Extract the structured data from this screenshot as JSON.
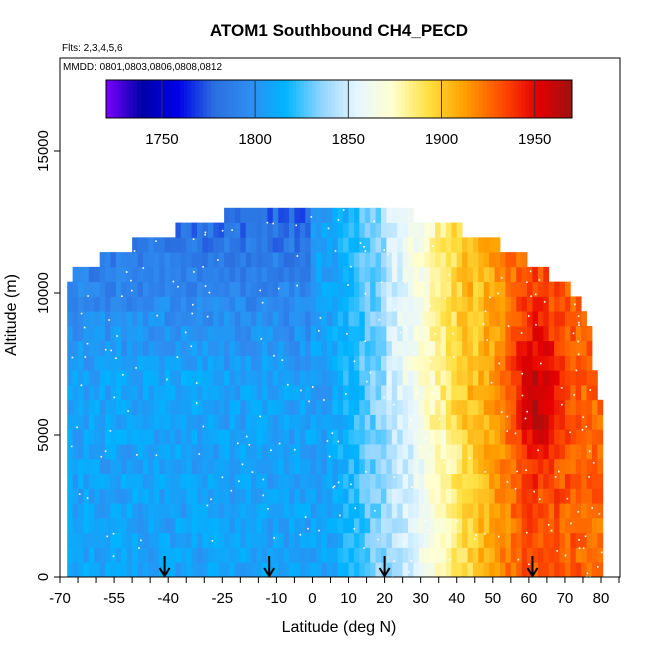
{
  "chart_data": {
    "type": "heatmap",
    "title": "ATOM1 Southbound CH4_PECD",
    "subtitle": "Flts: 2,3,4,5,6",
    "annotation": "MMDD: 0801,0803,0806,0808,0812",
    "xlabel": "Latitude (deg N)",
    "ylabel": "Altitude (m)",
    "xlim": [
      -70,
      85
    ],
    "ylim": [
      0,
      17500
    ],
    "x_ticks": [
      -70,
      -55,
      -40,
      -25,
      -10,
      0,
      10,
      20,
      30,
      40,
      50,
      60,
      70,
      80
    ],
    "y_ticks": [
      0,
      5000,
      10000,
      15000
    ],
    "colorbar": {
      "range": [
        1720,
        1970
      ],
      "ticks": [
        1750,
        1800,
        1850,
        1900,
        1950
      ],
      "palette": [
        "#7b00ff",
        "#0000a8",
        "#0000e8",
        "#2a6ee0",
        "#2f8df0",
        "#00b4ff",
        "#8fd4ff",
        "#e6f6ff",
        "#ffffd0",
        "#ffe040",
        "#ffa000",
        "#ff5000",
        "#e60000",
        "#a01010"
      ]
    },
    "flight_arrows_lat": [
      -41,
      -12,
      20,
      61
    ],
    "grid": false,
    "legend": "colorbar top",
    "profile_envelope": [
      {
        "lat": -68,
        "alt_top": 10500
      },
      {
        "lat": -58,
        "alt_top": 11300
      },
      {
        "lat": -45,
        "alt_top": 12000
      },
      {
        "lat": -30,
        "alt_top": 12500
      },
      {
        "lat": -20,
        "alt_top": 12900
      },
      {
        "lat": 0,
        "alt_top": 13000
      },
      {
        "lat": 20,
        "alt_top": 13000
      },
      {
        "lat": 40,
        "alt_top": 12300
      },
      {
        "lat": 55,
        "alt_top": 11500
      },
      {
        "lat": 68,
        "alt_top": 10500
      },
      {
        "lat": 76,
        "alt_top": 9500
      },
      {
        "lat": 80,
        "alt_top": 6000
      },
      {
        "lat": 81,
        "alt_top": 3500
      }
    ],
    "field_description_points": [
      {
        "lat": -65,
        "alt": 2000,
        "ch4": 1805
      },
      {
        "lat": -40,
        "alt": 2000,
        "ch4": 1808
      },
      {
        "lat": -10,
        "alt": 2000,
        "ch4": 1815
      },
      {
        "lat": 10,
        "alt": 2000,
        "ch4": 1835
      },
      {
        "lat": 25,
        "alt": 2000,
        "ch4": 1850
      },
      {
        "lat": 40,
        "alt": 2000,
        "ch4": 1880
      },
      {
        "lat": 55,
        "alt": 2000,
        "ch4": 1915
      },
      {
        "lat": 70,
        "alt": 2000,
        "ch4": 1925
      },
      {
        "lat": -60,
        "alt": 11000,
        "ch4": 1770
      },
      {
        "lat": 0,
        "alt": 11500,
        "ch4": 1820
      },
      {
        "lat": 40,
        "alt": 11000,
        "ch4": 1880
      },
      {
        "lat": 62,
        "alt": 5000,
        "ch4": 1955
      },
      {
        "lat": 62,
        "alt": 8000,
        "ch4": 1945
      }
    ]
  }
}
